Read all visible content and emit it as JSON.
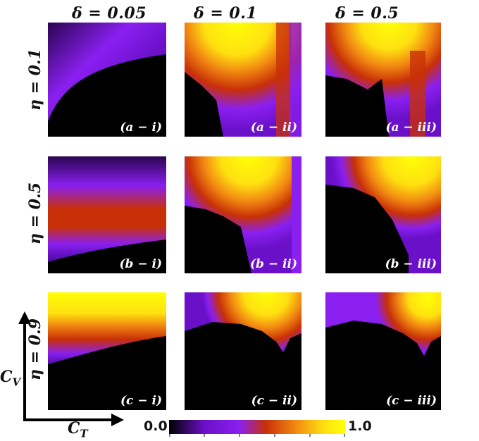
{
  "chart_data": {
    "type": "heatmap",
    "columns": [
      "δ = 0.05",
      "δ = 0.1",
      "δ = 0.5"
    ],
    "rows": [
      "η = 0.1",
      "η = 0.5",
      "η = 0.9"
    ],
    "panel_labels": [
      [
        "(a − i)",
        "(a − ii)",
        "(a − iii)"
      ],
      [
        "(b − i)",
        "(b − ii)",
        "(b − iii)"
      ],
      [
        "(c − i)",
        "(c − ii)",
        "(c − iii)"
      ]
    ],
    "xlabel": "C_T",
    "ylabel": "C_V",
    "colorbar": {
      "min": "0.0",
      "max": "1.0",
      "colormap": "black-purple-red-orange-yellow"
    }
  },
  "labels": {
    "xlabel_main": "C",
    "xlabel_sub": "T",
    "ylabel_main": "C",
    "ylabel_sub": "V"
  },
  "colors": {
    "black": "#000000",
    "purple": "#8a1ff0",
    "red": "#c83008",
    "orange": "#f28a12",
    "yellow": "#ffff08"
  }
}
